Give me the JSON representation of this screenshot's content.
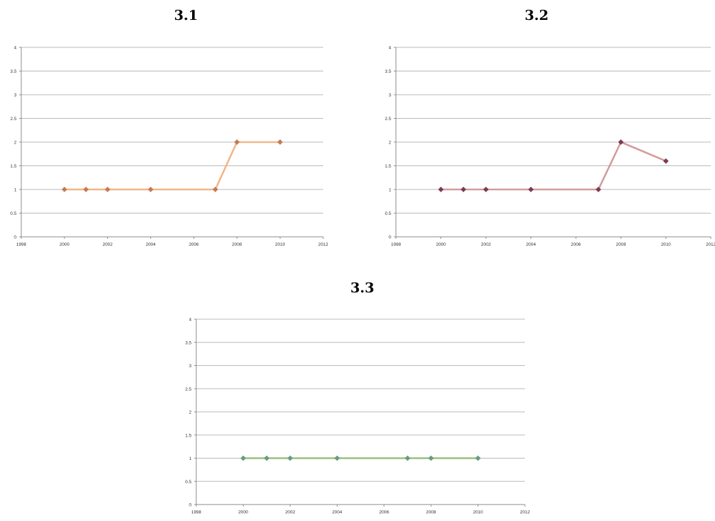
{
  "panels": [
    {
      "title": "3.1"
    },
    {
      "title": "3.2"
    },
    {
      "title": "3.3"
    }
  ],
  "chart_data": [
    {
      "type": "line",
      "title": "3.1",
      "xlabel": "",
      "ylabel": "",
      "xlim": [
        1998,
        2012
      ],
      "ylim": [
        0,
        4
      ],
      "xticks": [
        1998,
        2000,
        2002,
        2004,
        2006,
        2008,
        2010,
        2012
      ],
      "yticks": [
        0,
        0.5,
        1,
        1.5,
        2,
        2.5,
        3,
        3.5,
        4
      ],
      "grid": true,
      "line_color": "#f2b586",
      "marker_color": "#c47a55",
      "series": [
        {
          "x": [
            2000,
            2001,
            2002,
            2004,
            2007,
            2008,
            2010
          ],
          "y": [
            1,
            1,
            1,
            1,
            1,
            2,
            2
          ]
        }
      ]
    },
    {
      "type": "line",
      "title": "3.2",
      "xlabel": "",
      "ylabel": "",
      "xlim": [
        1998,
        2012
      ],
      "ylim": [
        0,
        4
      ],
      "xticks": [
        1998,
        2000,
        2002,
        2004,
        2006,
        2008,
        2010,
        2012
      ],
      "yticks": [
        0,
        0.5,
        1,
        1.5,
        2,
        2.5,
        3,
        3.5,
        4
      ],
      "grid": true,
      "line_color": "#d29b9b",
      "marker_color": "#7a3a55",
      "series": [
        {
          "x": [
            2000,
            2001,
            2002,
            2004,
            2007,
            2008,
            2010
          ],
          "y": [
            1,
            1,
            1,
            1,
            1,
            2,
            1.6
          ]
        }
      ]
    },
    {
      "type": "line",
      "title": "3.3",
      "xlabel": "",
      "ylabel": "",
      "xlim": [
        1998,
        2012
      ],
      "ylim": [
        0,
        4
      ],
      "xticks": [
        1998,
        2000,
        2002,
        2004,
        2006,
        2008,
        2010,
        2012
      ],
      "yticks": [
        0,
        0.5,
        1,
        1.5,
        2,
        2.5,
        3,
        3.5,
        4
      ],
      "grid": true,
      "line_color": "#9cbf7a",
      "marker_color": "#6a9a86",
      "series": [
        {
          "x": [
            2000,
            2001,
            2002,
            2004,
            2007,
            2008,
            2010
          ],
          "y": [
            1,
            1,
            1,
            1,
            1,
            1,
            1
          ]
        }
      ]
    }
  ]
}
